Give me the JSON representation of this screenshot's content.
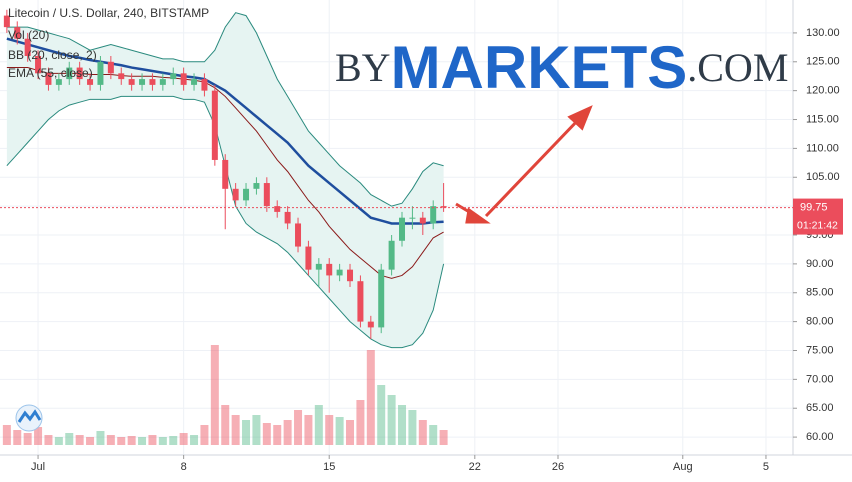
{
  "chart_data": {
    "type": "candlestick",
    "title": "Litecoin / U.S. Dollar, 240, BITSTAMP",
    "watermark": [
      "BY",
      "MARKETS",
      ".COM"
    ],
    "x": [
      -0.5,
      0,
      0.5,
      1,
      1.5,
      2,
      2.5,
      3,
      3.5,
      4,
      4.5,
      5,
      5.5,
      6,
      6.5,
      7,
      7.5,
      8,
      8.5,
      9,
      9.5,
      10,
      10.5,
      11,
      11.5,
      12,
      12.5,
      13,
      13.5,
      14,
      14.5,
      15,
      15.5,
      16,
      16.5,
      17,
      17.5,
      18,
      18.5,
      19,
      19.5,
      20,
      20.5
    ],
    "open": [
      133,
      131,
      129,
      126,
      123,
      121,
      122,
      124,
      122,
      121,
      125,
      123,
      122,
      121,
      122,
      121,
      122,
      123,
      121,
      122,
      120,
      108,
      103,
      101,
      103,
      104,
      100,
      99,
      97,
      93,
      89,
      90,
      88,
      89,
      87,
      80,
      79,
      89,
      94,
      98,
      98,
      97,
      100
    ],
    "high": [
      134,
      132,
      130,
      127,
      124,
      123,
      125,
      125,
      123,
      126,
      126,
      124,
      123,
      123,
      123,
      123,
      124,
      124,
      123,
      123,
      121,
      109,
      104,
      104,
      105,
      105,
      101,
      100,
      98,
      94,
      91,
      91,
      90,
      90,
      88,
      81,
      90,
      95,
      99,
      100,
      99,
      101,
      104
    ],
    "low": [
      130,
      128,
      125,
      122,
      120,
      120,
      121,
      121,
      120,
      120,
      122,
      121,
      120,
      120,
      120,
      120,
      121,
      120,
      120,
      119,
      107,
      96,
      100,
      100,
      102,
      99,
      98,
      96,
      92,
      88,
      86,
      85,
      87,
      86,
      79,
      77,
      78,
      88,
      93,
      96,
      95,
      96,
      99
    ],
    "close": [
      131,
      129,
      126,
      123,
      121,
      122,
      124,
      122,
      121,
      125,
      123,
      122,
      121,
      122,
      121,
      122,
      123,
      121,
      122,
      120,
      108,
      103,
      101,
      103,
      104,
      100,
      99,
      97,
      93,
      89,
      90,
      88,
      89,
      87,
      80,
      79,
      89,
      94,
      98,
      98,
      97,
      100,
      99.75
    ],
    "up_color": "#53b987",
    "down_color": "#eb4d5c",
    "indicators": [
      {
        "name": "Vol (20)",
        "values": [
          20,
          15,
          12,
          18,
          10,
          8,
          12,
          10,
          8,
          14,
          10,
          8,
          9,
          8,
          10,
          8,
          9,
          12,
          10,
          20,
          100,
          40,
          30,
          25,
          30,
          22,
          20,
          25,
          35,
          30,
          40,
          30,
          28,
          25,
          45,
          95,
          60,
          50,
          40,
          35,
          25,
          20,
          15
        ]
      },
      {
        "name": "BB (20, close, 2)",
        "color": "#2a8a7e",
        "basis_color": "#8b1a1a",
        "fill": "#e6f4f2",
        "upper": [
          131,
          131,
          131,
          130.5,
          130,
          129.5,
          129,
          128,
          127,
          127.5,
          128,
          127.5,
          127,
          126.5,
          126,
          125.5,
          125.5,
          125,
          125,
          125,
          127,
          131,
          133.5,
          133,
          130,
          126,
          122,
          119,
          116,
          113,
          111,
          109,
          107,
          105.5,
          104,
          102,
          101,
          100,
          100.5,
          103,
          106,
          107.5,
          107
        ],
        "basis": [
          124,
          124,
          124,
          123.5,
          123,
          123,
          123,
          123,
          122.8,
          122.8,
          122.8,
          122.6,
          122.5,
          122.5,
          122.5,
          122.3,
          122.2,
          122,
          121.8,
          121.5,
          120.5,
          119,
          117,
          115,
          113,
          110.5,
          108,
          106,
          103.5,
          101,
          99,
          96.5,
          94.5,
          92.5,
          91,
          89.5,
          88,
          87.5,
          88,
          89.5,
          92,
          94.5,
          95.5
        ],
        "lower": [
          107,
          109,
          111,
          113,
          115,
          116.5,
          117.5,
          118,
          118.5,
          118.5,
          118.5,
          119,
          119,
          119,
          119,
          119,
          119,
          118.5,
          118.5,
          118,
          114,
          107,
          100,
          97,
          95.5,
          94.5,
          93.5,
          92,
          90,
          88,
          86,
          84,
          82,
          80,
          78.5,
          77,
          76,
          75.5,
          75.5,
          76,
          78,
          82,
          90
        ]
      },
      {
        "name": "EMA (55, close)",
        "color": "#1f4e9e",
        "values": [
          129,
          128.5,
          128,
          127.5,
          127,
          126.5,
          126,
          125.7,
          125.3,
          125,
          124.7,
          124.4,
          124,
          123.7,
          123.4,
          123.1,
          122.8,
          122.5,
          122.3,
          122,
          121,
          120,
          118.5,
          117,
          115.5,
          114,
          112.5,
          111,
          109,
          107,
          105.5,
          104,
          102.5,
          101,
          99.5,
          98,
          97.5,
          97,
          97,
          97,
          97,
          97.2,
          97.3
        ]
      }
    ],
    "last_price": 99.75,
    "countdown": "01:21:42",
    "xlim": [
      -0.83,
      37.3
    ],
    "xticks": [
      {
        "value": 1,
        "label": "Jul"
      },
      8,
      15,
      22,
      26,
      {
        "value": 32,
        "label": "Aug"
      },
      {
        "value": 36,
        "label": "5"
      }
    ],
    "ylim": [
      56.9,
      135.7
    ],
    "yticks": [
      {
        "value": 60,
        "label": "60.00"
      },
      {
        "value": 65,
        "label": "65.00"
      },
      {
        "value": 70,
        "label": "70.00"
      },
      {
        "value": 75,
        "label": "75.00"
      },
      {
        "value": 80,
        "label": "80.00"
      },
      {
        "value": 85,
        "label": "85.00"
      },
      {
        "value": 90,
        "label": "90.00"
      },
      {
        "value": 95,
        "label": "95.00"
      },
      {
        "value": 100,
        "label": "100.00"
      },
      {
        "value": 105,
        "label": "105.00"
      },
      {
        "value": 110,
        "label": "110.00"
      },
      {
        "value": 115,
        "label": "115.00"
      },
      {
        "value": 120,
        "label": "120.00"
      },
      {
        "value": 125,
        "label": "125.00"
      },
      {
        "value": 130,
        "label": "130.00"
      }
    ],
    "grid": true
  }
}
